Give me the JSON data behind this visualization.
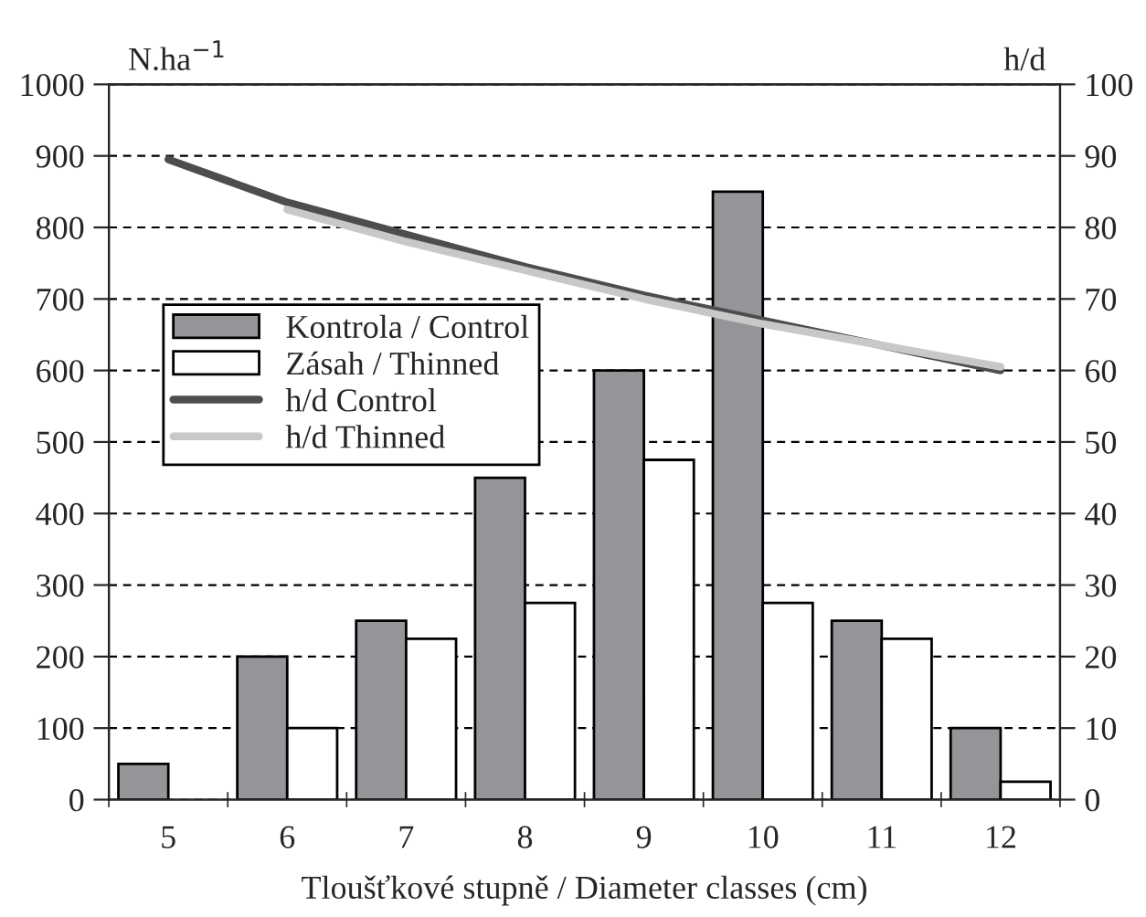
{
  "chart_data": {
    "type": "bar",
    "xlabel": "Tloušťkové stupně / Diameter classes (cm)",
    "ylabel": "N.ha$^{−1}$",
    "y2label": "h/d",
    "categories": [
      "5",
      "6",
      "7",
      "8",
      "9",
      "10",
      "11",
      "12"
    ],
    "series": [
      {
        "name": "Kontrola / Control",
        "color": "#939598",
        "values": [
          50,
          200,
          250,
          450,
          600,
          850,
          250,
          100
        ]
      },
      {
        "name": "Zásah / Thinned",
        "color": "#ffffff",
        "values": [
          null,
          100,
          225,
          275,
          475,
          275,
          225,
          25
        ]
      },
      {
        "name": "h/d Control",
        "type": "line",
        "axis": "y2",
        "color": "#4d4d4f",
        "values": [
          89.5,
          83.5,
          79,
          74.5,
          70.5,
          67,
          63.5,
          60
        ]
      },
      {
        "name": "h/d Thinned",
        "type": "line",
        "axis": "y2",
        "color": "#c8c8c8",
        "values": [
          null,
          82.5,
          78,
          74,
          70,
          66.5,
          63.5,
          60.5
        ]
      }
    ],
    "ylim": [
      0,
      1000
    ],
    "yticks": [
      0,
      100,
      200,
      300,
      400,
      500,
      600,
      700,
      800,
      900,
      1000
    ],
    "y2lim": [
      0,
      100
    ],
    "y2ticks": [
      0,
      10,
      20,
      30,
      40,
      50,
      60,
      70,
      80,
      90,
      100
    ],
    "grid": "y",
    "legend": "left"
  }
}
